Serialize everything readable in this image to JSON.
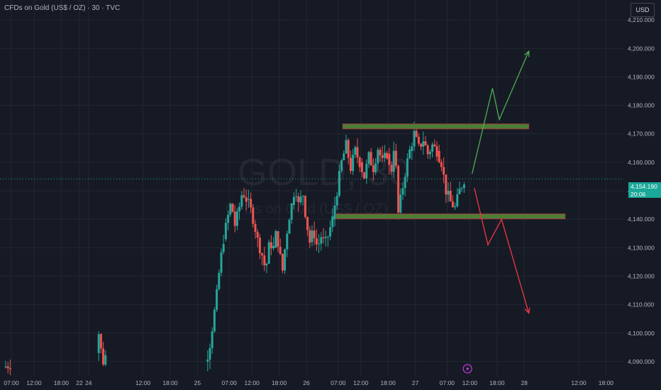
{
  "header": {
    "symbol_title": "CFDs on Gold (US$ / OZ) · 30 · TVC",
    "currency": "USD"
  },
  "watermark": {
    "symbol": "GOLD, 30",
    "name": "CFDs on Gold (US$ / OZ)"
  },
  "last_price": {
    "value": "4,154.190",
    "countdown": "20:06"
  },
  "colors": {
    "background": "#161a25",
    "grid": "#232733",
    "up_candle": "#26a69a",
    "down_candle": "#ef5350",
    "zone_fill": "#4e7d36",
    "zone_border": "#9a3b3b",
    "bull_arrow": "#4caf50",
    "bear_arrow": "#f23645",
    "event_marker": "#e040fb"
  },
  "chart_data": {
    "type": "candlestick",
    "title": "CFDs on Gold (US$ / OZ) · 30 · TVC",
    "y_ticks": [
      4090,
      4100,
      4110,
      4120,
      4130,
      4140,
      4150,
      4160,
      4170,
      4180,
      4190,
      4200,
      4210
    ],
    "y_tick_labels": [
      "4,090.000",
      "4,100.000",
      "4,110.000",
      "4,120.000",
      "4,130.000",
      "4,140.000",
      "4,150.000",
      "4,160.000",
      "4,170.000",
      "4,180.000",
      "4,190.000",
      "4,200.000",
      "4,210.000"
    ],
    "ylim": [
      4085,
      4217
    ],
    "x_tick_labels": [
      "07:00",
      "12:00",
      "18:00",
      "22",
      "24",
      "12:00",
      "18:00",
      "25",
      "07:00",
      "12:00",
      "18:00",
      "26",
      "07:00",
      "12:00",
      "18:00",
      "27",
      "07:00",
      "12:00",
      "18:00",
      "28",
      "12:00",
      "18:00"
    ],
    "x_tick_hours": [
      7,
      12,
      18,
      22,
      24,
      36,
      42,
      48,
      55,
      60,
      66,
      72,
      79,
      84,
      90,
      96,
      103,
      108,
      114,
      120,
      132,
      138
    ],
    "xlim_hours": [
      4.5,
      142
    ],
    "last_price": 4154.19,
    "key_levels": [
      {
        "name": "resistance",
        "price": 4172.6
      },
      {
        "name": "support",
        "price": 4141.0
      }
    ],
    "projections": [
      {
        "name": "bullish",
        "points": [
          [
            108.5,
            4156
          ],
          [
            113,
            4186
          ],
          [
            114.5,
            4175
          ],
          [
            121,
            4199
          ]
        ]
      },
      {
        "name": "bearish",
        "points": [
          [
            109,
            4151
          ],
          [
            112,
            4131
          ],
          [
            115,
            4140
          ],
          [
            121,
            4107
          ]
        ]
      }
    ],
    "candle_segments": [
      {
        "start_hour": 5.5,
        "end_hour": 7,
        "path": [
          4088,
          4089
        ]
      },
      {
        "start_hour": 26.0,
        "end_hour": 28.0,
        "path": [
          4093,
          4100,
          4094,
          4090,
          4092
        ]
      },
      {
        "start_hour": 50.0,
        "end_hour": 54.0,
        "path": [
          4090,
          4094,
          4103,
          4112,
          4124,
          4133
        ]
      },
      {
        "start_hour": 54.0,
        "end_hour": 59.0,
        "path": [
          4133,
          4140,
          4146,
          4138,
          4143,
          4150,
          4147
        ]
      },
      {
        "start_hour": 59.0,
        "end_hour": 65.0,
        "path": [
          4147,
          4144,
          4139,
          4132,
          4128,
          4122,
          4132,
          4130
        ]
      },
      {
        "start_hour": 65.0,
        "end_hour": 69.0,
        "path": [
          4130,
          4136,
          4128,
          4122,
          4132,
          4140,
          4145
        ]
      },
      {
        "start_hour": 69.0,
        "end_hour": 73.0,
        "path": [
          4145,
          4152,
          4144,
          4150,
          4140,
          4132
        ]
      },
      {
        "start_hour": 73.0,
        "end_hour": 78.0,
        "path": [
          4132,
          4136,
          4130,
          4134,
          4131,
          4135,
          4140
        ]
      },
      {
        "start_hour": 78.0,
        "end_hour": 84.0,
        "path": [
          4140,
          4150,
          4160,
          4166,
          4158,
          4164,
          4160
        ]
      },
      {
        "start_hour": 84.0,
        "end_hour": 90.0,
        "path": [
          4160,
          4155,
          4162,
          4158,
          4165,
          4160,
          4163
        ]
      },
      {
        "start_hour": 90.0,
        "end_hour": 95.0,
        "path": [
          4163,
          4155,
          4168,
          4142,
          4150,
          4158,
          4164
        ]
      },
      {
        "start_hour": 95.0,
        "end_hour": 101.0,
        "path": [
          4164,
          4170,
          4165,
          4168,
          4163,
          4166,
          4164
        ]
      },
      {
        "start_hour": 101.0,
        "end_hour": 107.0,
        "path": [
          4164,
          4160,
          4150,
          4146,
          4144,
          4150,
          4154
        ]
      }
    ]
  }
}
